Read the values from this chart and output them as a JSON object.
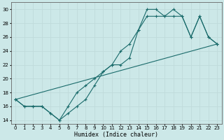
{
  "xlabel": "Humidex (Indice chaleur)",
  "bg_color": "#cce8e8",
  "grid_color": "#c0dada",
  "line_color": "#1a6b6b",
  "xlim": [
    -0.5,
    23.5
  ],
  "ylim": [
    13.5,
    31
  ],
  "xticks": [
    0,
    1,
    2,
    3,
    4,
    5,
    6,
    7,
    8,
    9,
    10,
    11,
    12,
    13,
    14,
    15,
    16,
    17,
    18,
    19,
    20,
    21,
    22,
    23
  ],
  "yticks": [
    14,
    16,
    18,
    20,
    22,
    24,
    26,
    28,
    30
  ],
  "line1_x": [
    0,
    1,
    2,
    3,
    4,
    5,
    6,
    7,
    8,
    9,
    10,
    11,
    12,
    13,
    14,
    15,
    16,
    17,
    18,
    19,
    20,
    21,
    22,
    23
  ],
  "line1_y": [
    17,
    16,
    16,
    16,
    15,
    14,
    15,
    16,
    17,
    19,
    21,
    22,
    24,
    25,
    27,
    30,
    30,
    29,
    30,
    29,
    26,
    29,
    26,
    25
  ],
  "line2_x": [
    0,
    23
  ],
  "line2_y": [
    17,
    25
  ],
  "line3_x": [
    0,
    1,
    2,
    3,
    4,
    5,
    6,
    7,
    8,
    9,
    10,
    11,
    12,
    13,
    14,
    15,
    16,
    17,
    18,
    19,
    20,
    21,
    22,
    23
  ],
  "line3_y": [
    17,
    16,
    16,
    16,
    15,
    14,
    16,
    18,
    19,
    20,
    21,
    22,
    22,
    23,
    27,
    29,
    29,
    29,
    29,
    29,
    26,
    29,
    26,
    25
  ]
}
